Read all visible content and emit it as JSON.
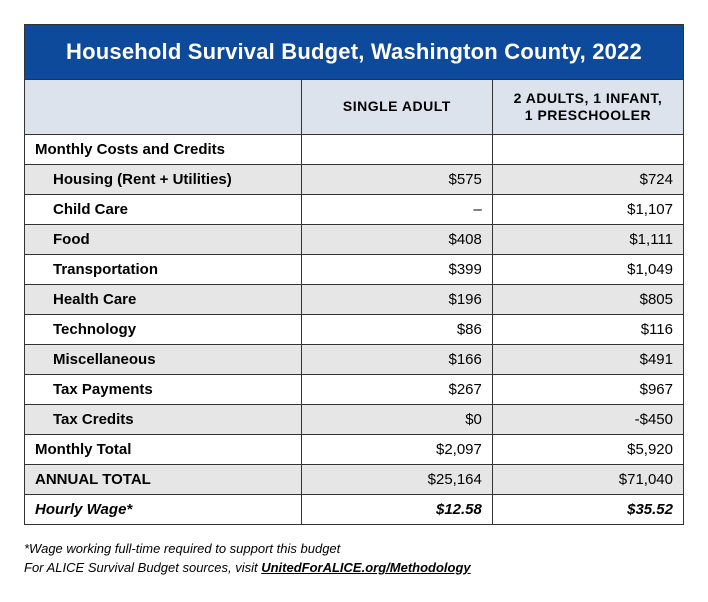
{
  "title": "Household Survival Budget, Washington County, 2022",
  "columns": {
    "blank": "",
    "col1": "SINGLE ADULT",
    "col2_line1": "2 ADULTS, 1 INFANT,",
    "col2_line2": "1 PRESCHOOLER"
  },
  "section_header": "Monthly Costs and Credits",
  "rows": {
    "housing": {
      "label": "Housing (Rent + Utilities)",
      "c1": "$575",
      "c2": "$724"
    },
    "childcare": {
      "label": "Child Care",
      "c1": "–",
      "c2": "$1,107"
    },
    "food": {
      "label": "Food",
      "c1": "$408",
      "c2": "$1,111"
    },
    "transport": {
      "label": "Transportation",
      "c1": "$399",
      "c2": "$1,049"
    },
    "health": {
      "label": "Health Care",
      "c1": "$196",
      "c2": "$805"
    },
    "tech": {
      "label": "Technology",
      "c1": "$86",
      "c2": "$116"
    },
    "misc": {
      "label": "Miscellaneous",
      "c1": "$166",
      "c2": "$491"
    },
    "taxpay": {
      "label": "Tax Payments",
      "c1": "$267",
      "c2": "$967"
    },
    "taxcred": {
      "label": "Tax Credits",
      "c1": "$0",
      "c2": "-$450"
    }
  },
  "totals": {
    "monthly": {
      "label": "Monthly Total",
      "c1": "$2,097",
      "c2": "$5,920"
    },
    "annual": {
      "label": "ANNUAL TOTAL",
      "c1": "$25,164",
      "c2": "$71,040"
    },
    "hourly": {
      "label": "Hourly Wage*",
      "c1": "$12.58",
      "c2": "$35.52"
    }
  },
  "footnote1": "*Wage working full-time required to support this budget",
  "footnote2_prefix": "For ALICE Survival Budget sources, visit ",
  "footnote2_link": "UnitedForALICE.org/Methodology",
  "colors": {
    "header_bg": "#0e4a9b",
    "thead_bg": "#dce3ec",
    "shade": "#e6e6e6",
    "border": "#333333"
  }
}
